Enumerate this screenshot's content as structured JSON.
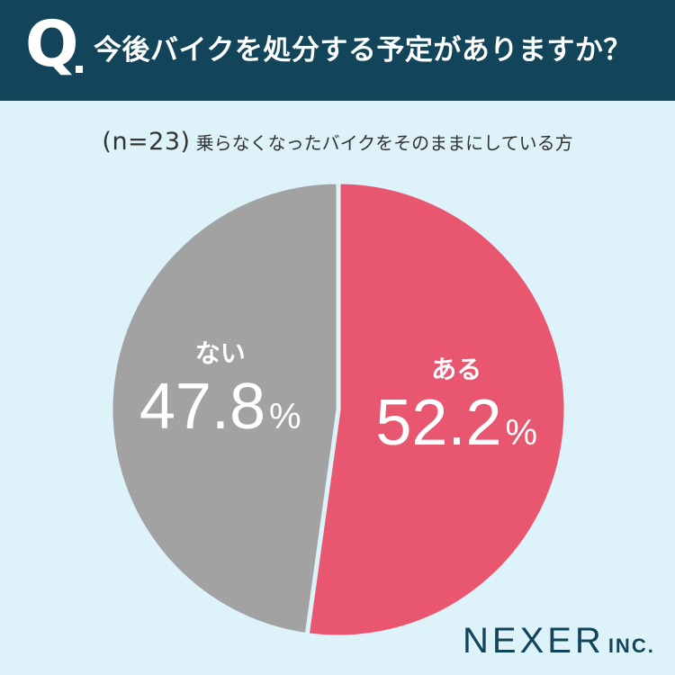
{
  "header": {
    "q_mark": "Q",
    "question": "今後バイクを処分する予定がありますか？"
  },
  "subtitle": {
    "n": "(n=23)",
    "text": "乗らなくなったバイクをそのままにしている方"
  },
  "chart_data": {
    "type": "pie",
    "slices": [
      {
        "label": "ある",
        "value": 52.2,
        "display": "52.2",
        "unit": "%",
        "color": "#e85670"
      },
      {
        "label": "ない",
        "value": 47.8,
        "display": "47.8",
        "unit": "%",
        "color": "#a2a2a2"
      }
    ],
    "start": "12 o'clock",
    "direction": "clockwise"
  },
  "logo": {
    "main": "NEXER",
    "inc": "INC."
  }
}
